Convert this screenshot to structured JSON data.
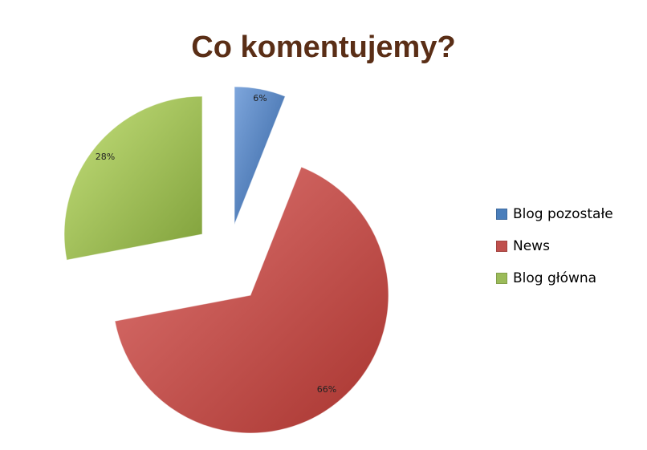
{
  "chart_data": {
    "type": "pie",
    "title": "Co komentujemy?",
    "slices": [
      {
        "name": "Blog pozostałe",
        "value": 6,
        "label": "6%",
        "color": "#4a7ebb"
      },
      {
        "name": "News",
        "value": 66,
        "label": "66%",
        "color": "#c0504d"
      },
      {
        "name": "Blog główna",
        "value": 28,
        "label": "28%",
        "color": "#9bbb59"
      }
    ],
    "exploded": true,
    "legend_position": "right"
  }
}
